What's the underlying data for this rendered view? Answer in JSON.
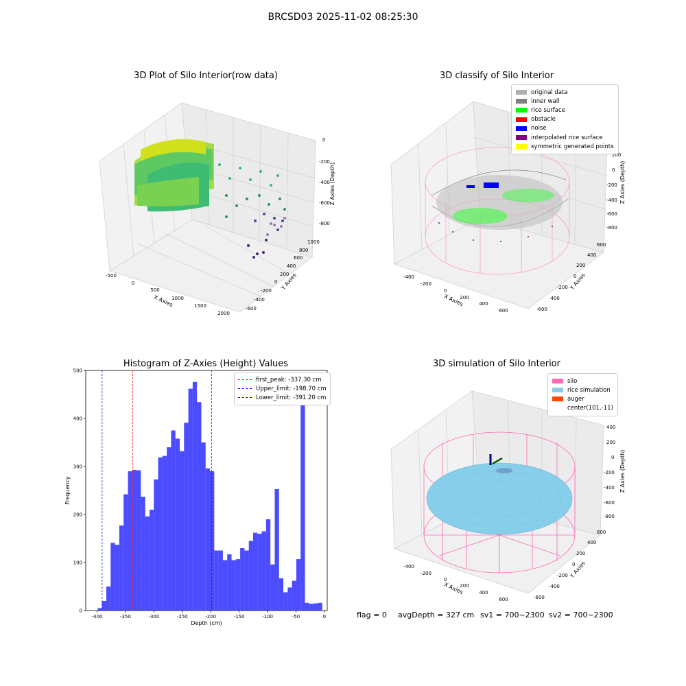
{
  "suptitle": "BRCSD03 2025-11-02 08:25:30",
  "panels": {
    "raw": {
      "title": "3D Plot of Silo Interior(row data)",
      "x_label": "X Axies",
      "y_label": "Y Axies",
      "z_label": "Z Axies (Depth)",
      "x_ticks": [
        "-500",
        "0",
        "500",
        "1000",
        "1500",
        "2000"
      ],
      "y_ticks": [
        "-600",
        "-400",
        "-200",
        "0",
        "200",
        "400",
        "600",
        "800",
        "1000"
      ],
      "z_ticks": [
        "0",
        "-200",
        "-400",
        "-600",
        "-800"
      ]
    },
    "classify": {
      "title": "3D classify of Silo Interior",
      "x_label": "X Axies",
      "y_label": "Y Axies",
      "z_label": "Z Axies (Depth)",
      "x_ticks": [
        "-400",
        "-200",
        "0",
        "200",
        "400",
        "600"
      ],
      "y_ticks": [
        "-600",
        "-400",
        "-200",
        "0",
        "200",
        "400",
        "600"
      ],
      "z_ticks": [
        "200",
        "0",
        "-200",
        "-400",
        "-600",
        "-800"
      ],
      "legend": [
        {
          "label": "original data",
          "color": "#b0b0b0"
        },
        {
          "label": "inner wall",
          "color": "#808080"
        },
        {
          "label": "rice surface",
          "color": "#00ff00"
        },
        {
          "label": "obstacle",
          "color": "#ff0000"
        },
        {
          "label": "noise",
          "color": "#0000ff"
        },
        {
          "label": "interpolated rice surface",
          "color": "#800080"
        },
        {
          "label": "symmetric generated points",
          "color": "#ffff00"
        }
      ]
    },
    "simulation": {
      "title": "3D simulation of Silo Interior",
      "x_label": "X Axies",
      "y_label": "Y Axies",
      "z_label": "Z Axies (Depth)",
      "x_ticks": [
        "-400",
        "-200",
        "0",
        "200",
        "400",
        "600"
      ],
      "y_ticks": [
        "-600",
        "-400",
        "-200",
        "0",
        "200",
        "400",
        "600"
      ],
      "z_ticks": [
        "400",
        "200",
        "0",
        "-200",
        "-400",
        "-600",
        "-800"
      ],
      "legend": [
        {
          "label": "silo",
          "color": "#ff69b4"
        },
        {
          "label": "rice simulation",
          "color": "#87ceeb"
        },
        {
          "label": "auger",
          "color": "#ff4500"
        },
        {
          "label": "center(101,-11)",
          "color": ""
        }
      ]
    }
  },
  "footer": {
    "flag": "flag = 0",
    "avg": "avgDepth = 327 cm",
    "sv1": "sv1 = 700~2300",
    "sv2": "sv2 = 700~2300"
  },
  "chart_data": {
    "type": "bar",
    "title": "Histogram of Z-Axies (Height) Values",
    "xlabel": "Depth (cm)",
    "ylabel": "Frequency",
    "xlim": [
      -420,
      5
    ],
    "ylim": [
      0,
      500
    ],
    "x_ticks": [
      -400,
      -350,
      -300,
      -250,
      -200,
      -150,
      -100,
      -50,
      0
    ],
    "y_ticks": [
      0,
      100,
      200,
      300,
      400,
      500
    ],
    "bin_width": 7.6,
    "bin_start": -399,
    "color": "#0000ff",
    "values": [
      5,
      20,
      50,
      141,
      137,
      177,
      242,
      290,
      293,
      292,
      237,
      196,
      210,
      273,
      319,
      322,
      340,
      375,
      358,
      332,
      391,
      462,
      476,
      434,
      350,
      296,
      290,
      125,
      125,
      105,
      117,
      105,
      107,
      130,
      125,
      145,
      162,
      160,
      165,
      190,
      96,
      253,
      67,
      38,
      48,
      62,
      107,
      440,
      16,
      14,
      15,
      16
    ],
    "lines": [
      {
        "name": "first_peak: -337.30 cm",
        "x": -337.3,
        "color": "#ff0000"
      },
      {
        "name": "Upper_limit: -198.70 cm",
        "x": -198.7,
        "color": "#0000ff"
      },
      {
        "name": "Lower_limit: -391.20 cm",
        "x": -391.2,
        "color": "#0000ff"
      }
    ]
  }
}
